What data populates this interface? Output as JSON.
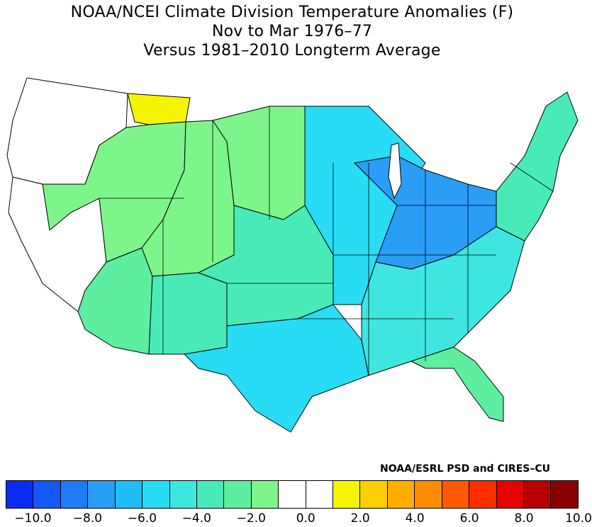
{
  "title": {
    "line1": "NOAA/NCEI Climate Division Temperature Anomalies (F)",
    "line2": "Nov to Mar 1976–77",
    "line3": "Versus 1981–2010 Longterm Average"
  },
  "credit": "NOAA/ESRL PSD and CIRES–CU",
  "legend": {
    "colors": [
      "#0a2cf2",
      "#1459f5",
      "#1f7bf7",
      "#2a9df5",
      "#1fbdf7",
      "#29dcf5",
      "#3fe6e0",
      "#48eab8",
      "#5deea0",
      "#7df58a",
      "#ffffff",
      "#ffffff",
      "#f5f500",
      "#ffcf00",
      "#ffae00",
      "#ff8c00",
      "#ff5a00",
      "#ff2e00",
      "#e80000",
      "#b80000",
      "#8a0000"
    ],
    "tick_labels": [
      "−10.0",
      "−8.0",
      "−6.0",
      "−4.0",
      "−2.0",
      "0.0",
      "2.0",
      "4.0",
      "6.0",
      "8.0",
      "10.0"
    ]
  },
  "regions": [
    {
      "name": "northwest",
      "color": "#ffffff"
    },
    {
      "name": "montana-west",
      "color": "#f5f500"
    },
    {
      "name": "great-basin",
      "color": "#ffffff"
    },
    {
      "name": "nevada-utah",
      "color": "#7df58a"
    },
    {
      "name": "colorado-plains",
      "color": "#7df58a"
    },
    {
      "name": "dakotas",
      "color": "#7df58a"
    },
    {
      "name": "arizona",
      "color": "#5deea0"
    },
    {
      "name": "new-mexico",
      "color": "#48eab8"
    },
    {
      "name": "southern-plains",
      "color": "#48eab8"
    },
    {
      "name": "texas",
      "color": "#29dcf5"
    },
    {
      "name": "midwest",
      "color": "#29dcf5"
    },
    {
      "name": "great-lakes-ohio",
      "color": "#2a9df5"
    },
    {
      "name": "southeast",
      "color": "#3fe6e0"
    },
    {
      "name": "florida",
      "color": "#5deea0"
    },
    {
      "name": "northeast",
      "color": "#48eab8"
    }
  ]
}
